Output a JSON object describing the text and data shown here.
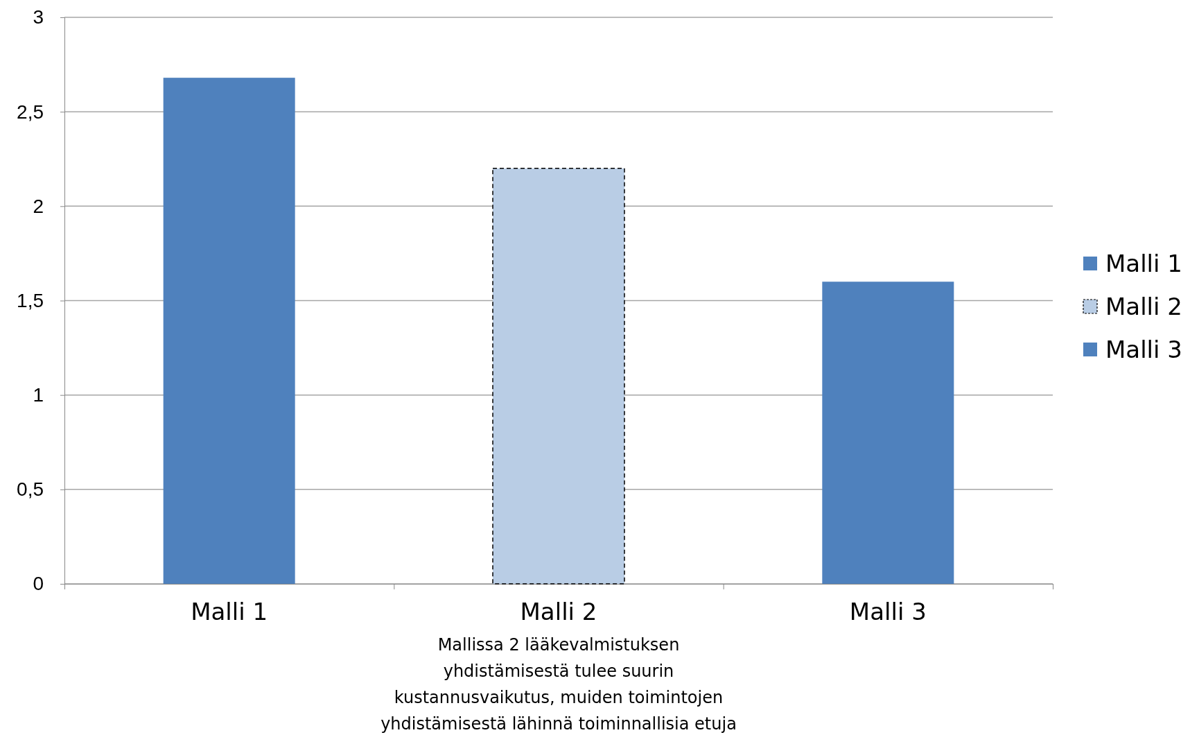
{
  "chart_data": {
    "type": "bar",
    "stacked": true,
    "categories": [
      "Malli 1",
      "Malli 2",
      "Malli 3"
    ],
    "series": [
      {
        "name": "Malli 1",
        "color": "#4f81bd",
        "values": [
          2.68,
          null,
          null
        ]
      },
      {
        "name": "Malli 2",
        "color": "#b9cde5",
        "line_style": "dashed",
        "values": [
          null,
          2.2,
          null
        ]
      },
      {
        "name": "Malli 3",
        "color": "#4f81bd",
        "values": [
          null,
          null,
          1.6
        ]
      }
    ],
    "ylim": [
      0,
      3
    ],
    "yticks": [
      0,
      {
        "value": 0.5,
        "label": "0,5"
      },
      1,
      {
        "value": 1.5,
        "label": "1,5"
      },
      2,
      {
        "value": 2.5,
        "label": "2,5"
      },
      3
    ],
    "grid": "y",
    "legend": "right",
    "annotations": [
      "Mallissa 2 lääkevalmistuksen\nyhdistämisestä tulee suurin\nkustannusvaikutus, muiden toimintojen\nyhdistämisestä lähinnä toiminnallisia etuja"
    ]
  }
}
